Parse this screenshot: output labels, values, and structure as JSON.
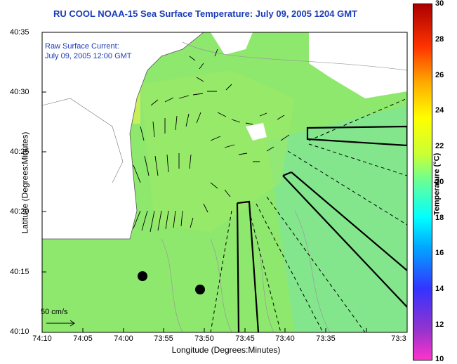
{
  "title": "RU COOL  NOAA-15  Sea Surface Temperature:  July 09, 2005 1204 GMT",
  "annotation": {
    "line1": "Raw Surface Current:",
    "line2": "July 09, 2005 12:00 GMT"
  },
  "scale_label": "50 cm/s",
  "axes": {
    "xlabel": "Longitude (Degrees:Minutes)",
    "ylabel": "Latitude (Degrees:Minutes)",
    "xticks": [
      "74:10",
      "74:05",
      "74:00",
      "73:55",
      "73:50",
      "73:45",
      "73:40",
      "73:35",
      "73:3"
    ],
    "yticks": [
      "40:35",
      "40:30",
      "40:25",
      "40:20",
      "40:15",
      "40:10"
    ]
  },
  "colorbar": {
    "label": "Temperature (°C)",
    "ticks": [
      "30",
      "28",
      "26",
      "24",
      "22",
      "20",
      "18",
      "16",
      "14",
      "12",
      "10"
    ]
  },
  "colors": {
    "land": "#ffffff",
    "sst_base": "#8ee86e",
    "sst_warm": "#c8ef5a",
    "title": "#1a3cb8"
  }
}
